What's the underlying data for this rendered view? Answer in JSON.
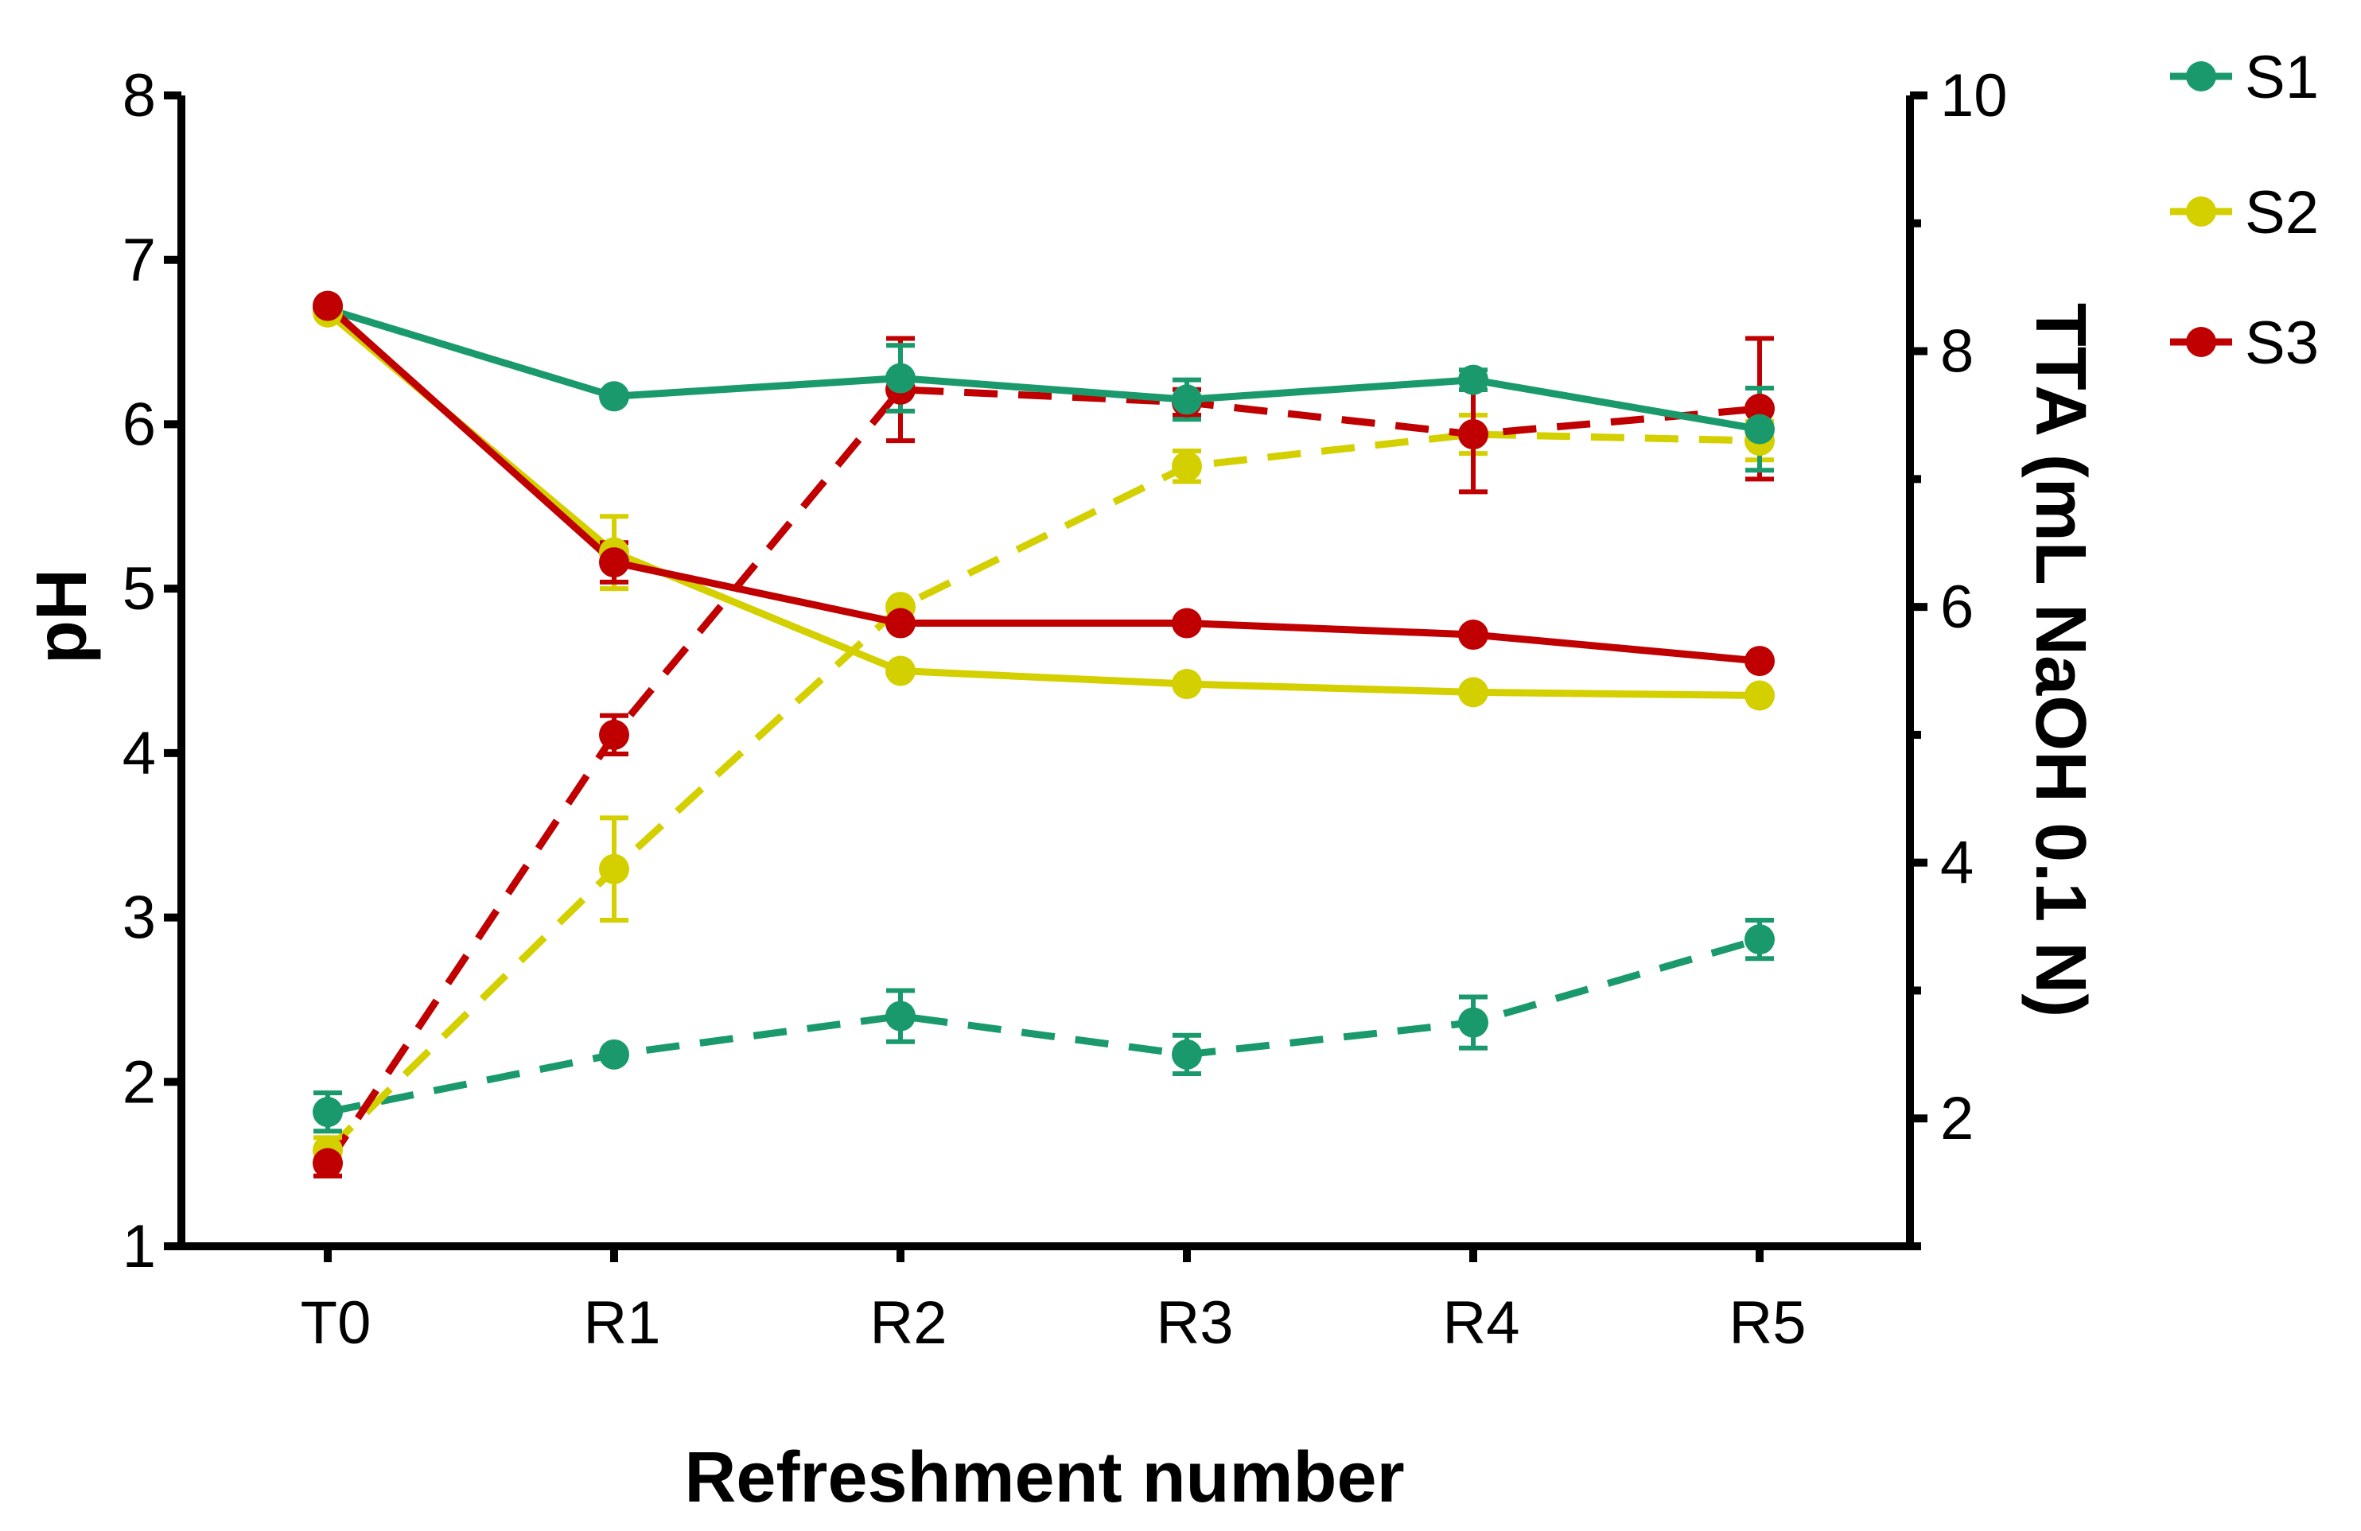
{
  "chart_data": {
    "type": "line",
    "title": "",
    "xlabel": "Refreshment number",
    "ylabel_left": "pH",
    "ylabel_right": "TTA (mL NaOH 0.1 N)",
    "categories": [
      "T0",
      "R1",
      "R2",
      "R3",
      "R4",
      "R5"
    ],
    "y_left": {
      "range": [
        1,
        8
      ],
      "ticks": [
        1,
        2,
        3,
        4,
        5,
        6,
        7,
        8
      ]
    },
    "y_right": {
      "range": [
        1,
        10
      ],
      "major_ticks": [
        2,
        4,
        6,
        8,
        10
      ],
      "minor_ticks": [
        1,
        3,
        5,
        7,
        9
      ]
    },
    "legend_position": "top-right",
    "legend": [
      {
        "name": "S1",
        "color": "#1a9a6c"
      },
      {
        "name": "S2",
        "color": "#d4d000"
      },
      {
        "name": "S3",
        "color": "#c00000"
      }
    ],
    "series": [
      {
        "name": "S1",
        "measure": "pH",
        "axis": "left",
        "style": "solid",
        "color": "#1a9a6c",
        "values": [
          6.7,
          6.17,
          6.28,
          6.15,
          6.27,
          5.97
        ],
        "errors": [
          0,
          0,
          0.2,
          0.12,
          0.06,
          0.25
        ]
      },
      {
        "name": "S2",
        "measure": "pH",
        "axis": "left",
        "style": "solid",
        "color": "#d4d000",
        "values": [
          6.68,
          5.22,
          4.5,
          4.42,
          4.37,
          4.35
        ],
        "errors": [
          0,
          0.22,
          0,
          0,
          0,
          0
        ]
      },
      {
        "name": "S3",
        "measure": "pH",
        "axis": "left",
        "style": "solid",
        "color": "#c00000",
        "values": [
          6.72,
          5.16,
          4.79,
          4.79,
          4.72,
          4.56
        ],
        "errors": [
          0,
          0.12,
          0,
          0,
          0,
          0
        ]
      },
      {
        "name": "S1",
        "measure": "TTA",
        "axis": "right",
        "style": "dashed",
        "color": "#1a9a6c",
        "values": [
          2.05,
          2.5,
          2.8,
          2.5,
          2.75,
          3.4
        ],
        "errors": [
          0.15,
          0,
          0.2,
          0.15,
          0.2,
          0.15
        ]
      },
      {
        "name": "S2",
        "measure": "TTA",
        "axis": "right",
        "style": "dashed",
        "color": "#d4d000",
        "values": [
          1.75,
          3.95,
          6.0,
          7.1,
          7.35,
          7.3
        ],
        "errors": [
          0.1,
          0.4,
          0,
          0.12,
          0.15,
          0.15
        ]
      },
      {
        "name": "S3",
        "measure": "TTA",
        "axis": "right",
        "style": "dashed",
        "color": "#c00000",
        "values": [
          1.65,
          5.0,
          7.7,
          7.6,
          7.35,
          7.55
        ],
        "errors": [
          0.1,
          0.15,
          0.4,
          0.1,
          0.45,
          0.55
        ]
      }
    ]
  }
}
